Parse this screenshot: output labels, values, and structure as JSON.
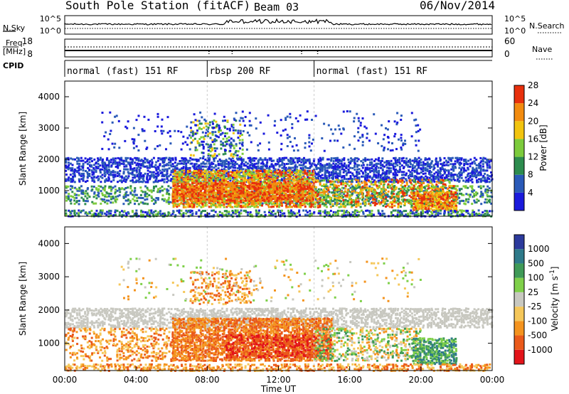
{
  "header": {
    "station": "South Pole Station (fitACF)",
    "beam": "Beam 03",
    "date": "06/Nov/2014"
  },
  "side_labels": {
    "nsky": "N.Sky",
    "freq_line1": "Freq.",
    "freq_line2": "[MHz]",
    "cpid": "CPID",
    "nsearch": "N.Search",
    "nave": "Nave"
  },
  "chart_data": [
    {
      "type": "line",
      "name": "noise",
      "yticks_left": [
        "10^5",
        "10^0"
      ],
      "yticks_right": [
        "10^5",
        "10^0"
      ]
    },
    {
      "type": "line",
      "name": "frequency_nave",
      "yticks_left": [
        "18",
        "8"
      ],
      "yticks_right": [
        "60",
        "0"
      ]
    },
    {
      "type": "table",
      "name": "cpid",
      "segments": [
        {
          "label": "normal (fast) 151 RF",
          "start_hour": 0,
          "end_hour": 8.0
        },
        {
          "label": "rbsp 200 RF",
          "start_hour": 8.0,
          "end_hour": 14.0
        },
        {
          "label": "normal (fast) 151 RF",
          "start_hour": 14.0,
          "end_hour": 24
        }
      ]
    },
    {
      "type": "heatmap",
      "name": "power",
      "ylabel": "Slant Range [km]",
      "yticks": [
        "1000",
        "2000",
        "3000",
        "4000"
      ],
      "ylim": [
        180,
        4500
      ],
      "colorbar_label": "Power [dB]",
      "colorbar_ticks": [
        "4",
        "8",
        "12",
        "16",
        "20",
        "24",
        "28"
      ],
      "colors": [
        "#1a1adc",
        "#2a5ab8",
        "#2d8c4e",
        "#7ccb3c",
        "#f2c40f",
        "#f28b0f",
        "#e8300c"
      ]
    },
    {
      "type": "heatmap",
      "name": "velocity",
      "ylabel": "Slant Range [km]",
      "yticks": [
        "1000",
        "2000",
        "3000",
        "4000"
      ],
      "ylim": [
        180,
        4500
      ],
      "xlabel": "Time UT",
      "xticks": [
        "00:00",
        "04:00",
        "08:00",
        "12:00",
        "16:00",
        "20:00",
        "00:00"
      ],
      "colorbar_label": "Velocity [m s",
      "colorbar_label_sup": "-1",
      "colorbar_label_close": "]",
      "colorbar_ticks": [
        "1000",
        "500",
        "100",
        "25",
        "-25",
        "-100",
        "-500",
        "-1000"
      ],
      "colors": [
        "#2c3a9c",
        "#2e7a8a",
        "#3f9a57",
        "#7fd04a",
        "#c8c8c0",
        "#f5c75a",
        "#f4931e",
        "#ea5a1a",
        "#e3141a"
      ]
    }
  ]
}
